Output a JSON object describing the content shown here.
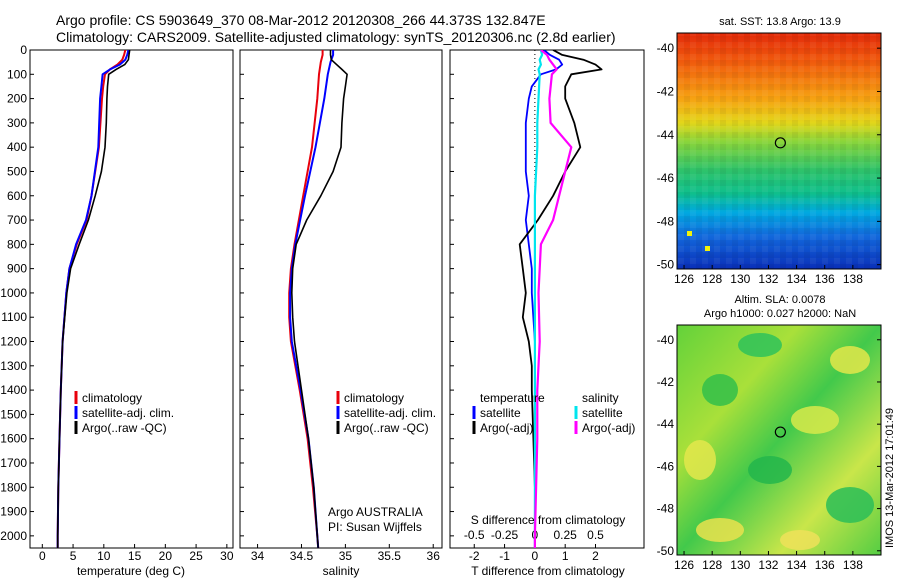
{
  "header": {
    "line1": "Argo profile: CS 5903649_370 08-Mar-2012 20120308_266 44.373S 132.847E",
    "line2": "Climatology: CARS2009. Satellite-adjusted climatology: synTS_20120306.nc (2.8d earlier)"
  },
  "legend_labels": {
    "clim": "climatology",
    "sat": "satellite-adj. clim.",
    "argo": "Argo(..raw -QC)",
    "temperature": "temperature",
    "salinity": "salinity",
    "satellite": "satellite",
    "argo_adj": "Argo(-adj)"
  },
  "float_info": {
    "line1": "Argo AUSTRALIA",
    "line2": "PI: Susan Wijffels"
  },
  "maps": {
    "sst_title": "sat. SST: 13.8 Argo: 13.9",
    "sla_title1": "Altim. SLA: 0.0078",
    "sla_title2": "Argo h1000: 0.027 h2000: NaN",
    "lon_ticks": [
      "126",
      "128",
      "130",
      "132",
      "134",
      "136",
      "138"
    ],
    "lat_ticks": [
      "-40",
      "-42",
      "-44",
      "-46",
      "-48",
      "-50"
    ],
    "argo_lon": 132.847,
    "argo_lat": -44.373,
    "lon_range": [
      125.5,
      140
    ],
    "lat_range": [
      -50.2,
      -39.3
    ]
  },
  "stamp": "IMOS 13-Mar-2012 17:01:49",
  "colors": {
    "clim": "#e8000b",
    "sat": "#0000ff",
    "argo": "#000000",
    "sat_salinity": "#00e5ee",
    "argo_salinity": "#ff00ff"
  },
  "chart_data": [
    {
      "type": "line",
      "xlabel": "temperature (deg C)",
      "ylabel": "",
      "xlim": [
        -2,
        31
      ],
      "ylim": [
        0,
        2050
      ],
      "xticks": [
        "0",
        "5",
        "10",
        "15",
        "20",
        "25",
        "30"
      ],
      "yticks": [
        "0",
        "100",
        "200",
        "300",
        "400",
        "500",
        "600",
        "700",
        "800",
        "900",
        "1000",
        "1100",
        "1200",
        "1300",
        "1400",
        "1500",
        "1600",
        "1700",
        "1800",
        "1900",
        "2000"
      ],
      "series": [
        {
          "name": "climatology",
          "depth": [
            0,
            20,
            40,
            60,
            80,
            100,
            150,
            200,
            400,
            600,
            700,
            800,
            900,
            1000,
            1200,
            1400,
            1600,
            1800,
            2000,
            2050
          ],
          "values": [
            13.5,
            13.3,
            13.0,
            12.2,
            11.0,
            10.2,
            9.9,
            9.7,
            9.2,
            8.0,
            7.2,
            5.6,
            4.4,
            3.9,
            3.3,
            3.0,
            2.8,
            2.6,
            2.5,
            2.5
          ]
        },
        {
          "name": "satellite-adj. clim.",
          "depth": [
            0,
            20,
            40,
            60,
            80,
            100,
            150,
            200,
            400,
            600,
            700,
            800,
            900,
            1000,
            1200,
            1400,
            1600,
            1800,
            2000,
            2050
          ],
          "values": [
            14.0,
            13.8,
            13.5,
            12.6,
            11.0,
            9.8,
            9.6,
            9.4,
            9.1,
            8.0,
            7.1,
            5.5,
            4.4,
            3.9,
            3.3,
            3.0,
            2.8,
            2.6,
            2.5,
            2.5
          ]
        },
        {
          "name": "Argo(..raw -QC)",
          "depth": [
            0,
            20,
            40,
            60,
            80,
            100,
            150,
            200,
            300,
            400,
            500,
            600,
            700,
            800,
            900,
            1000,
            1200,
            1400,
            1600,
            1800,
            2000,
            2050
          ],
          "values": [
            14.2,
            14.1,
            14.0,
            13.4,
            12.0,
            10.8,
            10.6,
            10.5,
            10.4,
            10.2,
            9.6,
            8.6,
            7.5,
            6.0,
            4.6,
            4.0,
            3.3,
            3.0,
            2.8,
            2.6,
            2.5,
            2.5
          ]
        }
      ]
    },
    {
      "type": "line",
      "xlabel": "salinity",
      "ylabel": "",
      "xlim": [
        33.8,
        36.1
      ],
      "ylim": [
        0,
        2050
      ],
      "xticks": [
        "34",
        "34.5",
        "35",
        "35.5",
        "36"
      ],
      "series": [
        {
          "name": "climatology",
          "depth": [
            0,
            20,
            50,
            100,
            200,
            400,
            600,
            800,
            900,
            1000,
            1100,
            1200,
            1400,
            1600,
            1800,
            2000,
            2050
          ],
          "values": [
            34.74,
            34.74,
            34.72,
            34.7,
            34.68,
            34.62,
            34.52,
            34.42,
            34.38,
            34.36,
            34.36,
            34.38,
            34.48,
            34.57,
            34.63,
            34.68,
            34.69
          ]
        },
        {
          "name": "satellite-adj. clim.",
          "depth": [
            0,
            20,
            50,
            100,
            200,
            400,
            600,
            800,
            900,
            1000,
            1100,
            1200,
            1400,
            1600,
            1800,
            2000,
            2050
          ],
          "values": [
            34.86,
            34.86,
            34.83,
            34.8,
            34.76,
            34.66,
            34.54,
            34.43,
            34.39,
            34.37,
            34.37,
            34.39,
            34.49,
            34.58,
            34.64,
            34.68,
            34.69
          ]
        },
        {
          "name": "Argo(..raw -QC)",
          "depth": [
            0,
            20,
            40,
            60,
            80,
            100,
            150,
            200,
            300,
            400,
            500,
            600,
            700,
            800,
            900,
            1000,
            1100,
            1200,
            1400,
            1600,
            1800,
            2000,
            2050
          ],
          "values": [
            34.83,
            34.83,
            34.84,
            34.9,
            34.96,
            35.02,
            35.0,
            34.98,
            34.96,
            34.95,
            34.86,
            34.72,
            34.56,
            34.44,
            34.4,
            34.39,
            34.4,
            34.42,
            34.5,
            34.58,
            34.64,
            34.68,
            34.69
          ]
        }
      ]
    },
    {
      "type": "line",
      "xlabel": "T difference from climatology",
      "ylabel": "",
      "title": "S difference from climatology",
      "xlim": [
        -2.8,
        3.6
      ],
      "ylim": [
        0,
        2050
      ],
      "xticks": [
        "-2",
        "-1",
        "0",
        "1",
        "2"
      ],
      "top_axis_ticks": [
        "-0.5",
        "-0.25",
        "0",
        "0.25",
        "0.5"
      ],
      "top_axis_values": [
        -0.5,
        -0.25,
        0,
        0.25,
        0.5
      ],
      "series": [
        {
          "name": "temperature satellite",
          "depth": [
            0,
            20,
            40,
            60,
            80,
            100,
            150,
            200,
            300,
            400,
            500,
            600,
            700,
            800,
            900,
            1000,
            1200,
            1400,
            1600,
            1800,
            2000,
            2050
          ],
          "values": [
            0.3,
            0.5,
            0.8,
            0.9,
            0.7,
            0.2,
            -0.1,
            -0.2,
            -0.3,
            -0.3,
            -0.3,
            -0.2,
            -0.3,
            -0.2,
            -0.1,
            -0.1,
            0.0,
            0.0,
            0.0,
            0.0,
            0.0,
            0.0
          ]
        },
        {
          "name": "temperature Argo(-adj)",
          "depth": [
            0,
            20,
            40,
            60,
            80,
            100,
            150,
            200,
            300,
            400,
            500,
            600,
            700,
            800,
            900,
            1000,
            1100,
            1200,
            1300,
            1400,
            1600,
            1800,
            2000,
            2050
          ],
          "values": [
            0.6,
            0.9,
            1.6,
            2.0,
            2.2,
            1.2,
            1.0,
            1.0,
            1.3,
            1.5,
            1.0,
            0.6,
            0.1,
            -0.5,
            -0.4,
            -0.3,
            -0.4,
            -0.2,
            -0.1,
            -0.1,
            -0.05,
            0.0,
            0.0,
            0.0
          ]
        },
        {
          "name": "salinity satellite",
          "depth": [
            0,
            20,
            40,
            60,
            80,
            100,
            200,
            300,
            400,
            500,
            600,
            700,
            800,
            1000,
            1200,
            1400,
            1600,
            1800,
            2000,
            2050
          ],
          "values": [
            0.05,
            0.06,
            0.04,
            0.05,
            0.03,
            0.04,
            0.03,
            0.02,
            0.02,
            0.01,
            0.0,
            0.0,
            0.0,
            0.0,
            0.0,
            0.0,
            0.0,
            0.0,
            0.0,
            0.0
          ]
        },
        {
          "name": "salinity Argo(-adj)",
          "depth": [
            0,
            20,
            40,
            60,
            80,
            100,
            200,
            300,
            400,
            500,
            600,
            700,
            800,
            1000,
            1200,
            1400,
            1600,
            1800,
            2000,
            2050
          ],
          "values": [
            0.05,
            0.1,
            0.12,
            0.15,
            0.18,
            0.14,
            0.12,
            0.13,
            0.3,
            0.25,
            0.2,
            0.15,
            0.05,
            0.03,
            0.04,
            0.02,
            0.02,
            0.01,
            0.0,
            0.0
          ]
        }
      ]
    }
  ]
}
